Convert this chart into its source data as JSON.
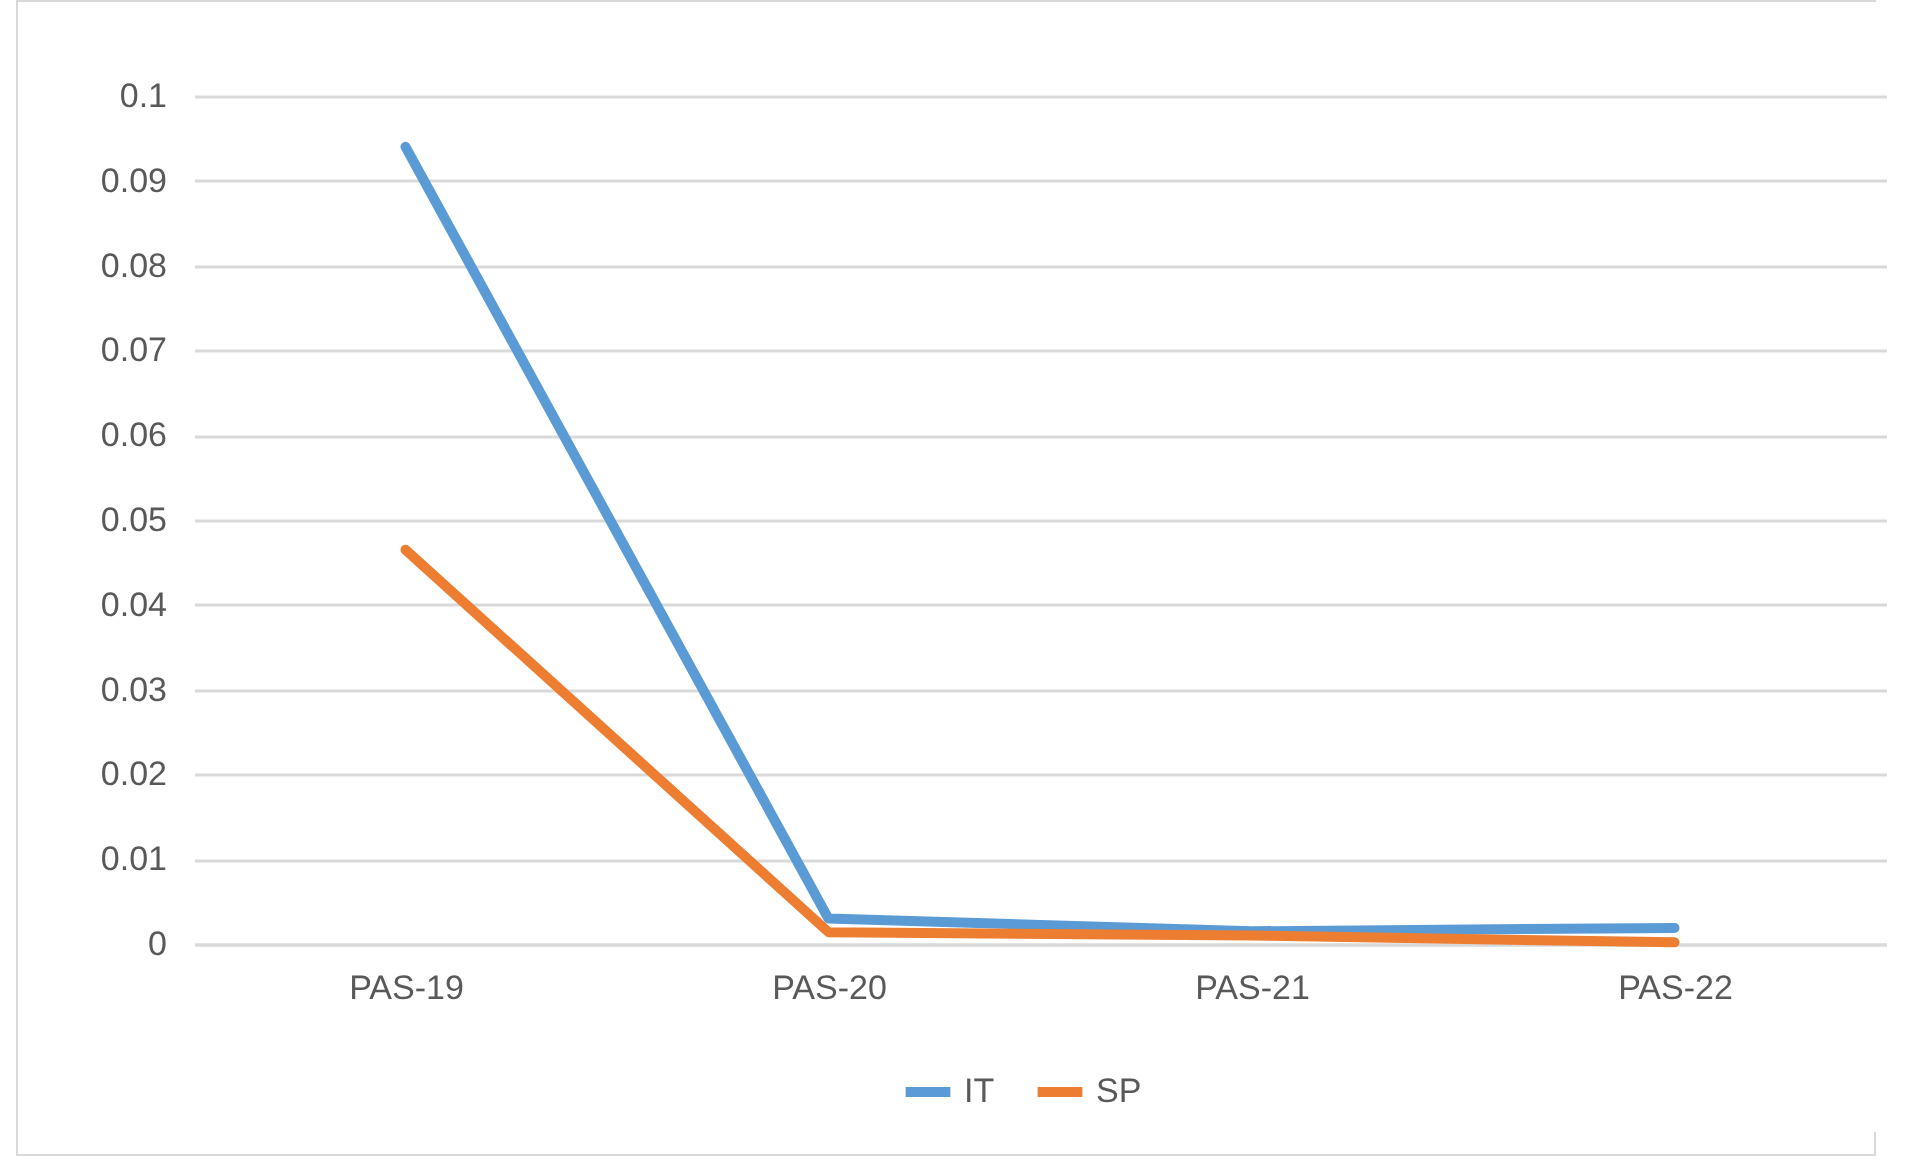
{
  "chart_data": {
    "type": "line",
    "categories": [
      "PAS-19",
      "PAS-20",
      "PAS-21",
      "PAS-22"
    ],
    "series": [
      {
        "name": "IT",
        "color": "#5b9bd5",
        "values": [
          0.094,
          0.003,
          0.0015,
          0.0019
        ]
      },
      {
        "name": "SP",
        "color": "#ed7d31",
        "values": [
          0.0465,
          0.0014,
          0.001,
          0.0002
        ]
      }
    ],
    "ylim": [
      0,
      0.1
    ],
    "yticks": [
      0,
      0.01,
      0.02,
      0.03,
      0.04,
      0.05,
      0.06,
      0.07,
      0.08,
      0.09,
      0.1
    ],
    "grid": "y",
    "legend": "bottom",
    "marker": "none",
    "line_style": "solid"
  }
}
